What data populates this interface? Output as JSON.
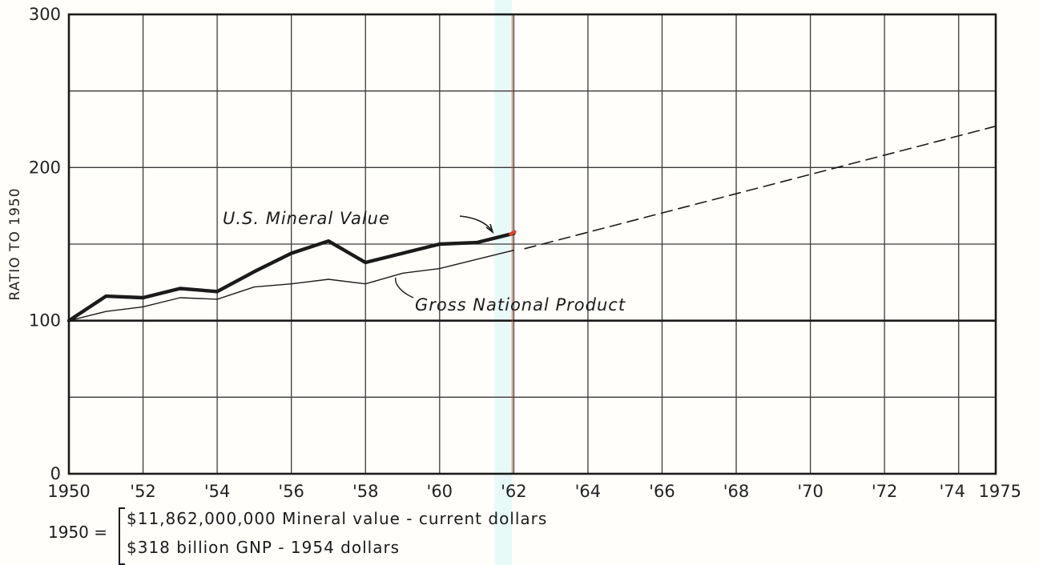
{
  "chart_data": {
    "type": "line",
    "ylabel": "RATIO TO 1950",
    "ylim": [
      0,
      300
    ],
    "yticks": [
      "0",
      "100",
      "200",
      "300"
    ],
    "xlim": [
      1950,
      1975
    ],
    "xticks": [
      {
        "x": 1950,
        "label": "1950"
      },
      {
        "x": 1952,
        "label": "'52"
      },
      {
        "x": 1954,
        "label": "'54"
      },
      {
        "x": 1956,
        "label": "'56"
      },
      {
        "x": 1958,
        "label": "'58"
      },
      {
        "x": 1960,
        "label": "'60"
      },
      {
        "x": 1962,
        "label": "'62"
      },
      {
        "x": 1964,
        "label": "'64"
      },
      {
        "x": 1966,
        "label": "'66"
      },
      {
        "x": 1968,
        "label": "'68"
      },
      {
        "x": 1970,
        "label": "'70"
      },
      {
        "x": 1972,
        "label": "'72"
      },
      {
        "x": 1974,
        "label": "'74"
      },
      {
        "x": 1975,
        "label": "1975"
      }
    ],
    "grid": true,
    "reference_line": 100,
    "series": [
      {
        "name": "U.S. Mineral Value",
        "x": [
          1950,
          1951,
          1952,
          1953,
          1954,
          1955,
          1956,
          1957,
          1958,
          1959,
          1960,
          1961,
          1962
        ],
        "y": [
          100,
          116,
          115,
          121,
          119,
          132,
          144,
          152,
          138,
          144,
          150,
          151,
          157
        ],
        "style": "thick"
      },
      {
        "name": "Gross National Product",
        "x": [
          1950,
          1951,
          1952,
          1953,
          1954,
          1955,
          1956,
          1957,
          1958,
          1959,
          1960,
          1961,
          1962
        ],
        "y": [
          100,
          106,
          109,
          115,
          114,
          122,
          124,
          127,
          124,
          131,
          134,
          140,
          146
        ],
        "style": "thin"
      },
      {
        "name": "",
        "x": [
          1962.3,
          1975
        ],
        "y": [
          147,
          227
        ],
        "style": "dashed"
      }
    ],
    "annotations": [
      "U.S. Mineral Value",
      "Gross National Product"
    ]
  },
  "footnote": {
    "prefix": "1950 =",
    "line1": "$11,862,000,000  Mineral value - current dollars",
    "line2": "$318 billion GNP - 1954 dollars"
  },
  "colors": {
    "ink": "#1b1b1b",
    "grid": "#3a3a3a",
    "endpoint": "#d9442c",
    "tint": "#96ebeb"
  }
}
